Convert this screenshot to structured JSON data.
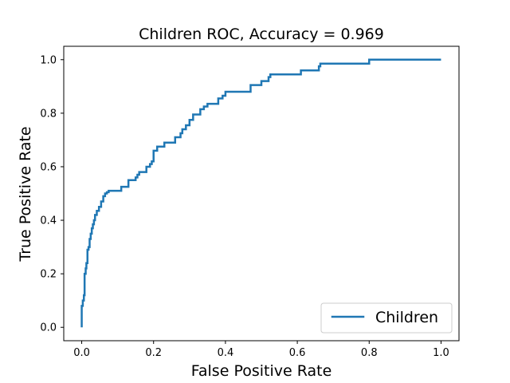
{
  "chart_data": {
    "type": "line",
    "title": "Children ROC, Accuracy = 0.969",
    "xlabel": "False Positive Rate",
    "ylabel": "True Positive Rate",
    "xlim": [
      -0.05,
      1.05
    ],
    "ylim": [
      -0.05,
      1.05
    ],
    "xticks": [
      0.0,
      0.2,
      0.4,
      0.6,
      0.8,
      1.0
    ],
    "xtick_labels": [
      "0.0",
      "0.2",
      "0.4",
      "0.6",
      "0.8",
      "1.0"
    ],
    "yticks": [
      0.0,
      0.2,
      0.4,
      0.6,
      0.8,
      1.0
    ],
    "ytick_labels": [
      "0.0",
      "0.2",
      "0.4",
      "0.6",
      "0.8",
      "1.0"
    ],
    "grid": false,
    "legend_position": "lower-right",
    "series": [
      {
        "name": "Children",
        "color": "#1f77b4",
        "x": [
          0.0,
          0.0,
          0.003,
          0.003,
          0.006,
          0.006,
          0.008,
          0.008,
          0.011,
          0.011,
          0.013,
          0.013,
          0.016,
          0.016,
          0.019,
          0.019,
          0.022,
          0.022,
          0.025,
          0.025,
          0.028,
          0.028,
          0.031,
          0.031,
          0.034,
          0.034,
          0.037,
          0.037,
          0.042,
          0.042,
          0.048,
          0.048,
          0.054,
          0.054,
          0.06,
          0.06,
          0.065,
          0.065,
          0.07,
          0.07,
          0.075,
          0.075,
          0.082,
          0.082,
          0.11,
          0.11,
          0.13,
          0.13,
          0.15,
          0.15,
          0.155,
          0.155,
          0.16,
          0.16,
          0.17,
          0.17,
          0.18,
          0.18,
          0.19,
          0.19,
          0.195,
          0.195,
          0.2,
          0.2,
          0.21,
          0.21,
          0.23,
          0.23,
          0.26,
          0.26,
          0.275,
          0.275,
          0.28,
          0.28,
          0.29,
          0.29,
          0.3,
          0.3,
          0.31,
          0.31,
          0.33,
          0.33,
          0.34,
          0.34,
          0.35,
          0.35,
          0.357,
          0.357,
          0.38,
          0.38,
          0.392,
          0.392,
          0.4,
          0.4,
          0.47,
          0.47,
          0.5,
          0.5,
          0.52,
          0.52,
          0.525,
          0.525,
          0.61,
          0.61,
          0.66,
          0.66,
          0.664,
          0.664,
          0.668,
          0.668,
          0.8,
          0.8,
          1.0
        ],
        "y": [
          0.0,
          0.08,
          0.08,
          0.1,
          0.1,
          0.12,
          0.12,
          0.2,
          0.2,
          0.22,
          0.22,
          0.24,
          0.24,
          0.29,
          0.29,
          0.3,
          0.3,
          0.33,
          0.33,
          0.35,
          0.35,
          0.37,
          0.37,
          0.385,
          0.385,
          0.4,
          0.4,
          0.42,
          0.42,
          0.435,
          0.435,
          0.45,
          0.45,
          0.47,
          0.47,
          0.49,
          0.49,
          0.5,
          0.5,
          0.505,
          0.505,
          0.51,
          0.51,
          0.51,
          0.51,
          0.525,
          0.525,
          0.55,
          0.55,
          0.56,
          0.56,
          0.57,
          0.57,
          0.58,
          0.58,
          0.58,
          0.58,
          0.6,
          0.6,
          0.61,
          0.61,
          0.62,
          0.62,
          0.66,
          0.66,
          0.675,
          0.675,
          0.69,
          0.69,
          0.71,
          0.71,
          0.725,
          0.725,
          0.74,
          0.74,
          0.755,
          0.755,
          0.775,
          0.775,
          0.795,
          0.795,
          0.815,
          0.815,
          0.825,
          0.825,
          0.835,
          0.835,
          0.835,
          0.835,
          0.855,
          0.855,
          0.865,
          0.865,
          0.88,
          0.88,
          0.905,
          0.905,
          0.92,
          0.92,
          0.935,
          0.935,
          0.945,
          0.945,
          0.96,
          0.96,
          0.975,
          0.975,
          0.985,
          0.985,
          0.985,
          0.985,
          1.0,
          1.0
        ]
      }
    ]
  }
}
